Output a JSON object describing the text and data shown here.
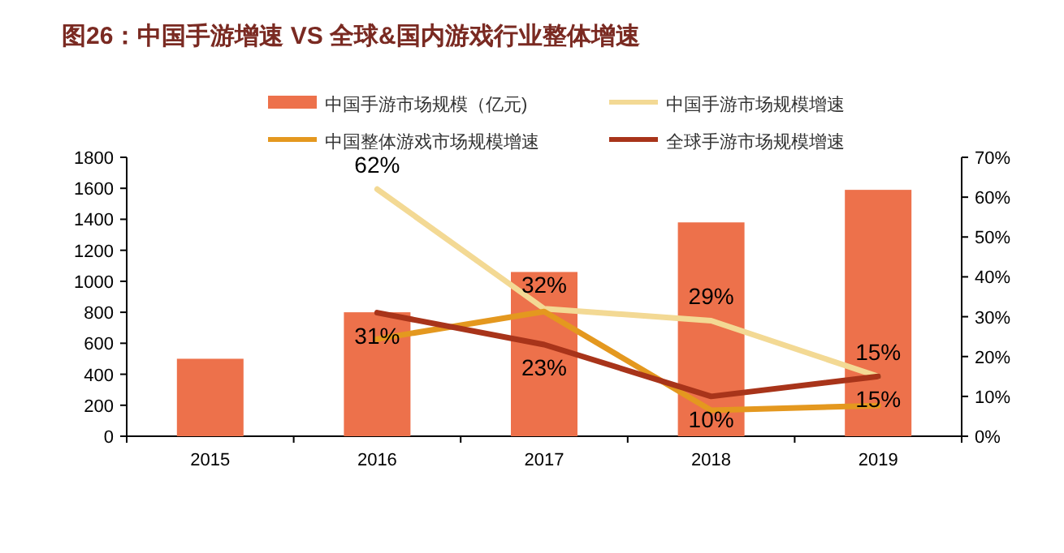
{
  "chart_data": {
    "type": "bar",
    "title": "图26：中国手游增速 VS 全球&国内游戏行业整体增速",
    "categories": [
      "2015",
      "2016",
      "2017",
      "2018",
      "2019"
    ],
    "series": [
      {
        "name": "中国手游市场规模（亿元)",
        "color": "#ed714b",
        "values": [
          500,
          800,
          1060,
          1380,
          1590
        ]
      },
      {
        "name": "中国手游市场规模增速",
        "type": "line",
        "axis": "y2",
        "color": "#f3d994",
        "values": [
          null,
          62,
          32,
          29,
          15
        ],
        "value_labels": [
          null,
          "62%",
          "32%",
          "29%",
          "15%"
        ]
      },
      {
        "name": "中国整体游戏市场规模增速",
        "type": "line",
        "axis": "y2",
        "color": "#e4981f",
        "values": [
          null,
          24.4,
          31.3,
          6.5,
          7.7
        ]
      },
      {
        "name": "全球手游市场规模增速",
        "type": "line",
        "axis": "y2",
        "color": "#a8341a",
        "values": [
          null,
          31,
          23,
          10,
          15
        ],
        "value_labels": [
          null,
          "31%",
          "23%",
          "10%",
          "15%"
        ]
      }
    ],
    "ylim": [
      0,
      1800
    ],
    "yticks": [
      0,
      200,
      400,
      600,
      800,
      1000,
      1200,
      1400,
      1600,
      1800
    ],
    "y2lim": [
      0,
      70
    ],
    "y2ticks": [
      {
        "value": 0,
        "label": "0%"
      },
      {
        "value": 10,
        "label": "10%"
      },
      {
        "value": 20,
        "label": "20%"
      },
      {
        "value": 30,
        "label": "30%"
      },
      {
        "value": 40,
        "label": "40%"
      },
      {
        "value": 50,
        "label": "50%"
      },
      {
        "value": 60,
        "label": "60%"
      },
      {
        "value": 70,
        "label": "70%"
      }
    ],
    "grid": false,
    "legend": "top"
  }
}
